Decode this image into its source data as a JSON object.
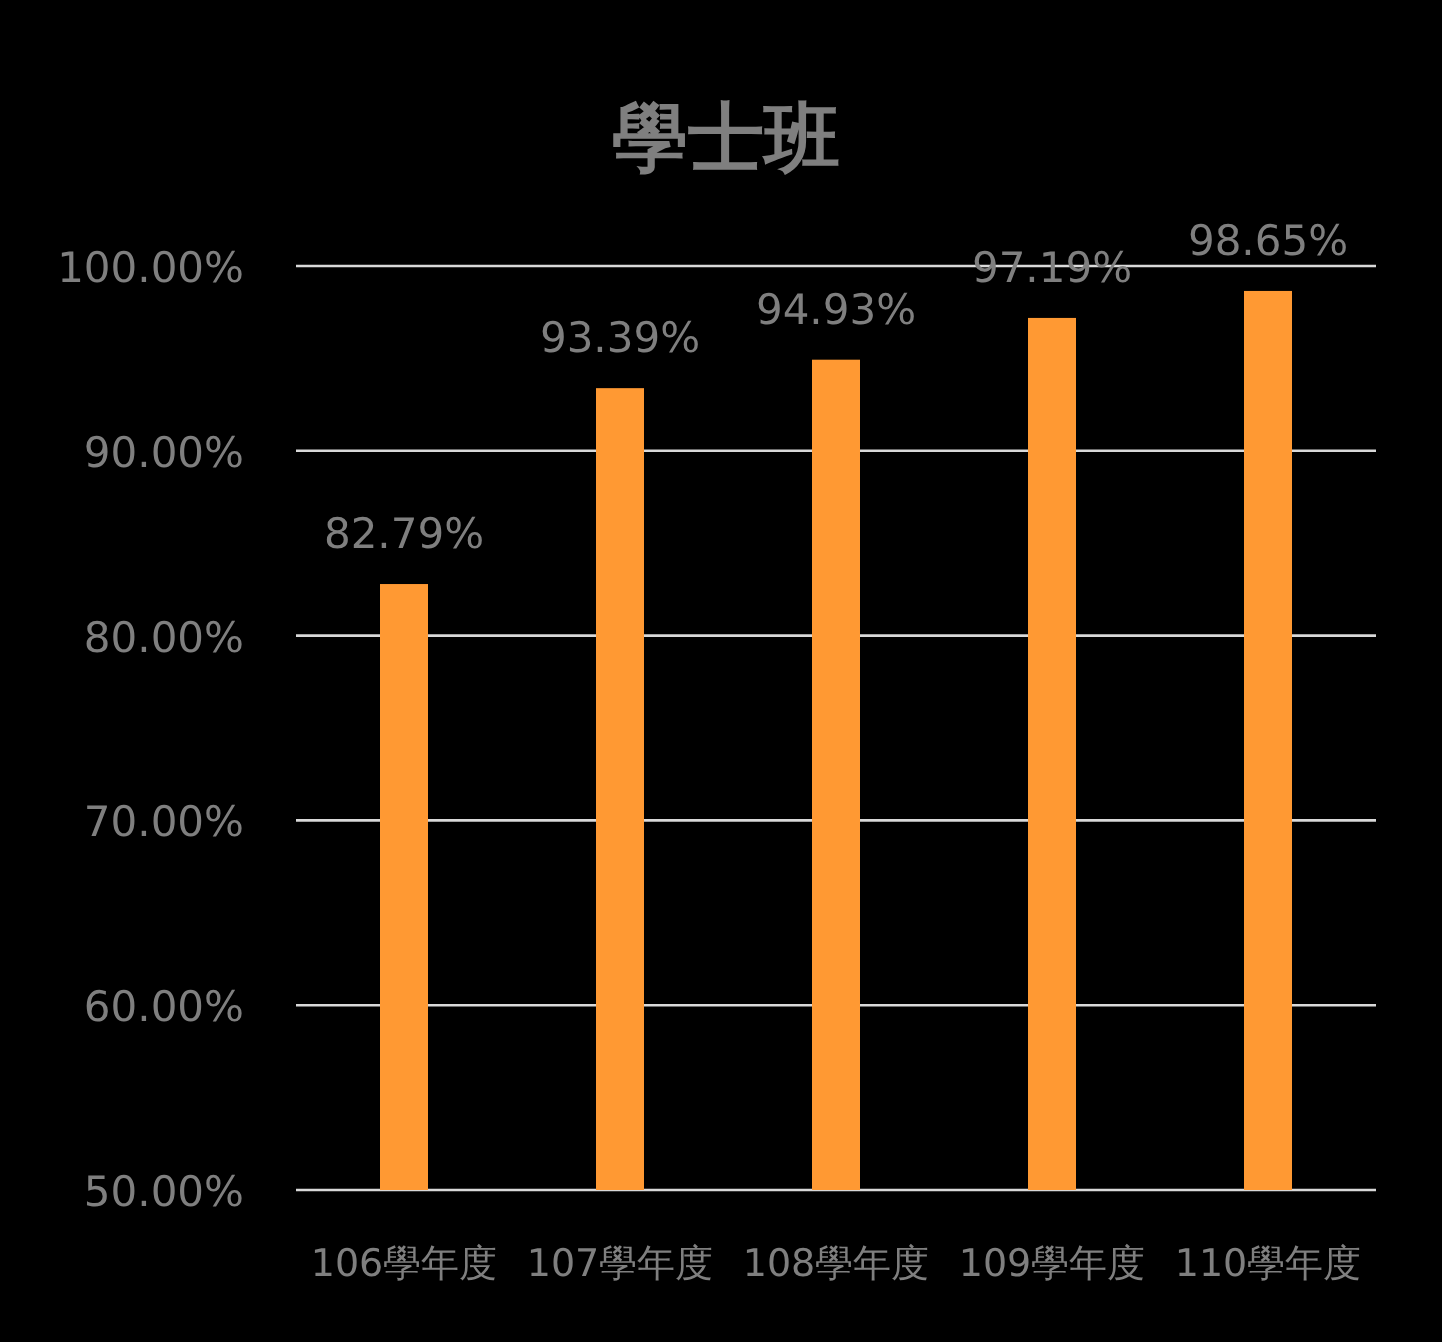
{
  "chart_data": {
    "type": "bar",
    "title": "學士班",
    "categories": [
      "106學年度",
      "107學年度",
      "108學年度",
      "109學年度",
      "110學年度"
    ],
    "values": [
      82.79,
      93.39,
      94.93,
      97.19,
      98.65
    ],
    "value_labels": [
      "82.79%",
      "93.39%",
      "94.93%",
      "97.19%",
      "98.65%"
    ],
    "color": "#ff9933",
    "ylim": [
      50,
      100
    ],
    "yticks": [
      {
        "value": 50,
        "label": "50.00%"
      },
      {
        "value": 60,
        "label": "60.00%"
      },
      {
        "value": 70,
        "label": "70.00%"
      },
      {
        "value": 80,
        "label": "80.00%"
      },
      {
        "value": 90,
        "label": "90.00%"
      },
      {
        "value": 100,
        "label": "100.00%"
      }
    ],
    "grid": "y"
  }
}
